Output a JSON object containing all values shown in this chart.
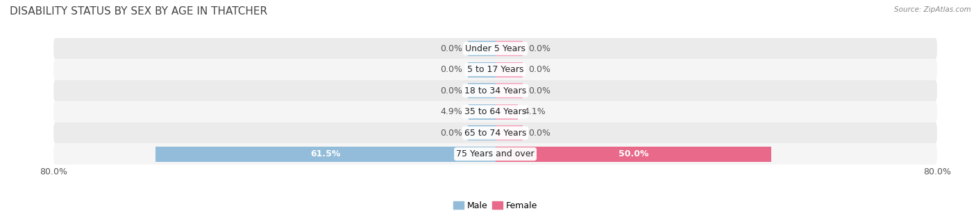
{
  "title": "DISABILITY STATUS BY SEX BY AGE IN THATCHER",
  "source": "Source: ZipAtlas.com",
  "categories": [
    "Under 5 Years",
    "5 to 17 Years",
    "18 to 34 Years",
    "35 to 64 Years",
    "65 to 74 Years",
    "75 Years and over"
  ],
  "male_values": [
    0.0,
    0.0,
    0.0,
    4.9,
    0.0,
    61.5
  ],
  "female_values": [
    0.0,
    0.0,
    0.0,
    4.1,
    0.0,
    50.0
  ],
  "male_color": "#92bcd9",
  "female_color": "#f4a0b8",
  "female_color_large": "#e8698a",
  "row_bg_even": "#ebebeb",
  "row_bg_odd": "#f5f5f5",
  "axis_max": 80.0,
  "stub_size": 5.0,
  "legend_male": "Male",
  "legend_female": "Female",
  "title_fontsize": 11,
  "label_fontsize": 9,
  "category_fontsize": 9
}
